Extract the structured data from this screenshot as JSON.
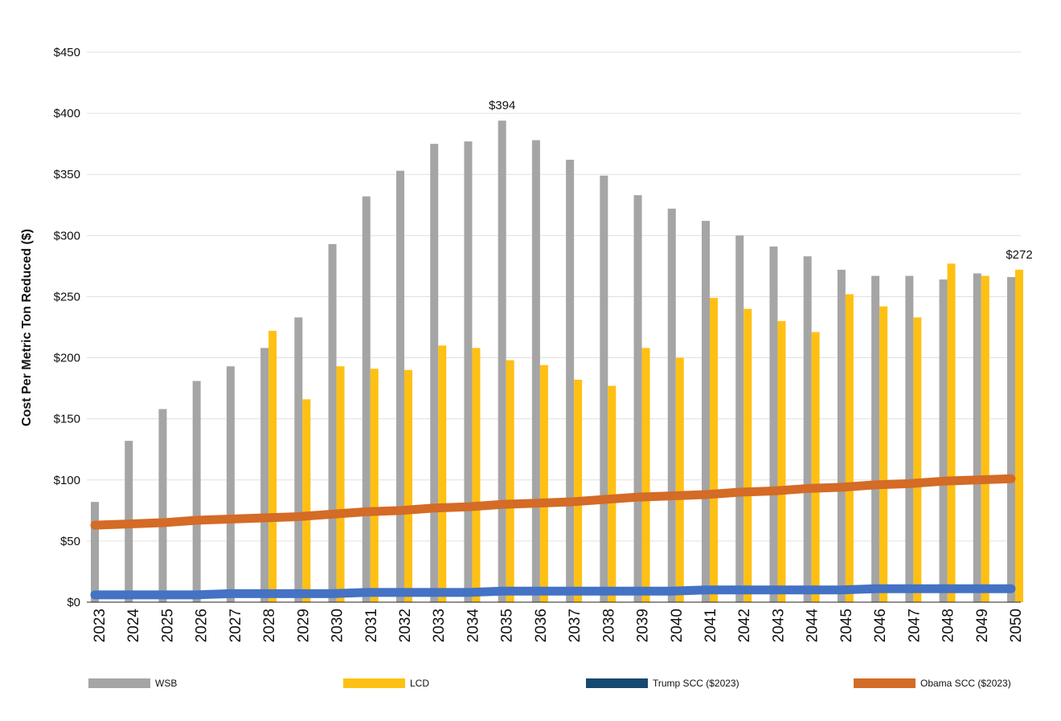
{
  "chart_data": {
    "type": "bar",
    "title": "",
    "xlabel": "",
    "ylabel": "Cost Per Metric Ton Reduced ($)",
    "ylim": [
      0,
      450
    ],
    "yticks": [
      0,
      50,
      100,
      150,
      200,
      250,
      300,
      350,
      400,
      450
    ],
    "ytick_labels": [
      "$0",
      "$50",
      "$100",
      "$150",
      "$200",
      "$250",
      "$300",
      "$350",
      "$400",
      "$450"
    ],
    "grid": true,
    "legend_position": "bottom",
    "categories": [
      "2023",
      "2024",
      "2025",
      "2026",
      "2027",
      "2028",
      "2029",
      "2030",
      "2031",
      "2032",
      "2033",
      "2034",
      "2035",
      "2036",
      "2037",
      "2038",
      "2039",
      "2040",
      "2041",
      "2042",
      "2043",
      "2044",
      "2045",
      "2046",
      "2047",
      "2048",
      "2049",
      "2050"
    ],
    "series": [
      {
        "name": "WSB",
        "kind": "bar",
        "color": "#A5A5A5",
        "values": [
          82,
          132,
          158,
          181,
          193,
          208,
          233,
          293,
          332,
          353,
          375,
          377,
          394,
          378,
          362,
          349,
          333,
          322,
          312,
          300,
          291,
          283,
          272,
          267,
          267,
          264,
          269,
          266
        ]
      },
      {
        "name": "LCD",
        "kind": "bar",
        "color": "#FFC014",
        "values": [
          null,
          null,
          null,
          null,
          null,
          222,
          166,
          193,
          191,
          190,
          210,
          208,
          198,
          194,
          182,
          177,
          208,
          200,
          249,
          240,
          230,
          221,
          252,
          242,
          233,
          277,
          267,
          272
        ]
      },
      {
        "name": "Trump SCC ($2023)",
        "kind": "line",
        "color": "#4472C4",
        "legend_color": "#164870",
        "values": [
          6,
          6,
          6,
          6,
          7,
          7,
          7,
          7,
          8,
          8,
          8,
          8,
          9,
          9,
          9,
          9,
          9,
          9,
          10,
          10,
          10,
          10,
          10,
          11,
          11,
          11,
          11,
          11
        ]
      },
      {
        "name": "Obama SCC ($2023)",
        "kind": "line",
        "color": "#D46B26",
        "values": [
          63,
          64,
          65,
          67,
          68,
          69,
          70,
          72,
          74,
          75,
          77,
          78,
          80,
          81,
          82,
          84,
          86,
          87,
          88,
          90,
          91,
          93,
          94,
          96,
          97,
          99,
          100,
          101
        ]
      }
    ],
    "annotations": [
      {
        "category": "2035",
        "series": "WSB",
        "text": "$394"
      },
      {
        "category": "2050",
        "series": "LCD",
        "text": "$272"
      }
    ]
  }
}
